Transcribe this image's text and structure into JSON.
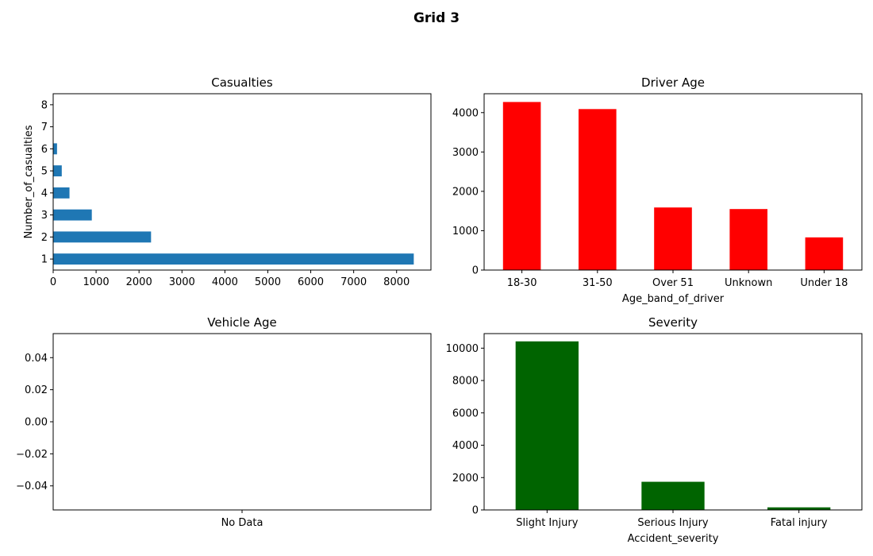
{
  "figure": {
    "title": "Grid 3"
  },
  "chart_data": [
    {
      "type": "bar",
      "orientation": "horizontal",
      "title": "Casualties",
      "xlabel": "",
      "ylabel": "Number_of_casualties",
      "categories": [
        "1",
        "2",
        "3",
        "4",
        "5",
        "6",
        "7",
        "8"
      ],
      "values": [
        8400,
        2280,
        900,
        380,
        200,
        90,
        5,
        2
      ],
      "xlim": [
        0,
        8800
      ],
      "xticks": [
        "0",
        "1000",
        "2000",
        "3000",
        "4000",
        "5000",
        "6000",
        "7000",
        "8000"
      ],
      "color": "#1f77b4",
      "grid": false
    },
    {
      "type": "bar",
      "title": "Driver Age",
      "xlabel": "Age_band_of_driver",
      "ylabel": "",
      "categories": [
        "18-30",
        "31-50",
        "Over 51",
        "Unknown",
        "Under 18"
      ],
      "values": [
        4270,
        4090,
        1590,
        1550,
        830
      ],
      "ylim": [
        0,
        4480
      ],
      "yticks": [
        "0",
        "1000",
        "2000",
        "3000",
        "4000"
      ],
      "color": "#ff0000",
      "grid": false
    },
    {
      "type": "bar",
      "title": "Vehicle Age",
      "xlabel": "",
      "ylabel": "",
      "categories": [
        "No Data"
      ],
      "values": [
        0
      ],
      "ylim": [
        -0.055,
        0.055
      ],
      "yticks": [
        "0.04",
        "0.02",
        "0.00",
        "−0.02",
        "−0.04"
      ],
      "ytick_values": [
        0.04,
        0.02,
        0.0,
        -0.02,
        -0.04
      ],
      "color": "#1f77b4",
      "grid": false
    },
    {
      "type": "bar",
      "title": "Severity",
      "xlabel": "Accident_severity",
      "ylabel": "",
      "categories": [
        "Slight Injury",
        "Serious Injury",
        "Fatal injury"
      ],
      "values": [
        10420,
        1740,
        160
      ],
      "ylim": [
        0,
        10900
      ],
      "yticks": [
        "0",
        "2000",
        "4000",
        "6000",
        "8000",
        "10000"
      ],
      "color": "#006400",
      "grid": false
    }
  ]
}
